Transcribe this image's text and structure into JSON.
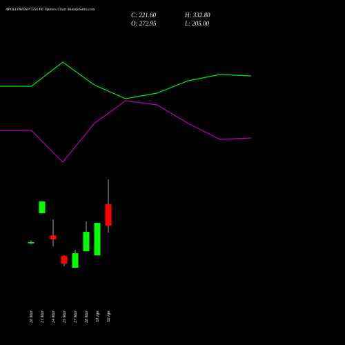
{
  "chart_data": [
    {
      "type": "candlestick",
      "title": "APOLLOHOSP 7250 PE Options Chart MunafaSutra.com",
      "close_label": "C: 221.60",
      "high_label": "H: 332.80",
      "open_label": "O: 272.95",
      "low_label": "L: 205.00",
      "categories": [
        "20 Mar",
        "21 Mar",
        "24 Mar",
        "25 Mar",
        "27 Mar",
        "28 Mar",
        "01 Apr",
        "02 Apr"
      ],
      "open": [
        179,
        251.5,
        198.3,
        148.5,
        120.3,
        160.2,
        150.2,
        272.95
      ],
      "high": [
        186,
        280,
        236.5,
        150,
        163.5,
        231.5,
        228.2,
        332.8
      ],
      "low": [
        177,
        251,
        171.8,
        123.7,
        120,
        160,
        150,
        205
      ],
      "close": [
        182,
        279.7,
        188.4,
        130.3,
        155.2,
        206.6,
        228.2,
        221.6
      ],
      "up_color": "#00ff00",
      "down_color": "#ff0000",
      "ylim": [
        0,
        420
      ]
    },
    {
      "type": "line",
      "series": [
        {
          "color": "#00ee00",
          "values": [
            125,
            125,
            160,
            127,
            107,
            115,
            133,
            142,
            140
          ]
        },
        {
          "color": "#bb00bb",
          "values": [
            61,
            61,
            15,
            71,
            104,
            98,
            71,
            48,
            50
          ]
        }
      ],
      "ylim": [
        0,
        250
      ]
    }
  ]
}
